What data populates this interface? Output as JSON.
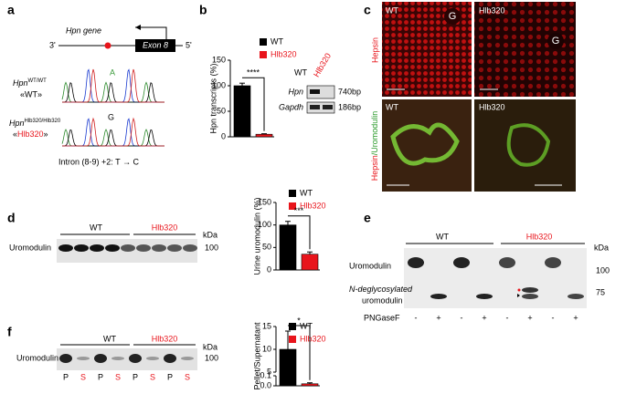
{
  "panels": {
    "a": {
      "letter": "a",
      "gene_label": "Hpn gene",
      "three_prime": "3'",
      "five_prime": "5'",
      "exon": "Exon 8",
      "wt_gene": "Hpn",
      "wt_sup": "WT/WT",
      "wt_alias": "«WT»",
      "mut_gene": "Hpn",
      "mut_sup": "Hlb320/Hlb320",
      "mut_alias_open": "«",
      "mut_alias": "Hlb320",
      "mut_alias_close": "»",
      "base_wt": "A",
      "base_mut": "G",
      "mutation": "Intron (8-9) +2: T → C"
    },
    "b": {
      "letter": "b",
      "gel_wt": "WT",
      "gel_mut": "Hlb320",
      "gene1": "Hpn",
      "gene2": "Gapdh",
      "size1": "740bp",
      "size2": "186bp"
    },
    "c": {
      "letter": "c",
      "top_wt": "WT",
      "top_mut": "Hlb320",
      "glom1": "G",
      "glom2": "G",
      "bottom_wt": "WT",
      "bottom_mut": "Hlb320",
      "stain_top": "Hepsin",
      "stain_bottom_a": "Hepsin",
      "stain_bottom_b": "/Uromodulin"
    },
    "d": {
      "letter": "d",
      "wt": "WT",
      "mut": "Hlb320",
      "kda": "kDa",
      "marker": "100",
      "protein": "Uromodulin"
    },
    "e": {
      "letter": "e",
      "wt": "WT",
      "mut": "Hlb320",
      "kda": "kDa",
      "marker1": "100",
      "marker2": "75",
      "protein": "Uromodulin",
      "degly1": "N-deglycosylated",
      "degly2": "uromodulin",
      "enzyme": "PNGaseF",
      "lanes": [
        "-",
        "+",
        "-",
        "+",
        "-",
        "+",
        "-",
        "+"
      ]
    },
    "f": {
      "letter": "f",
      "wt": "WT",
      "mut": "Hlb320",
      "kda": "kDa",
      "marker": "100",
      "protein": "Uromodulin",
      "lanes": [
        "P",
        "S",
        "P",
        "S",
        "P",
        "S",
        "P",
        "S"
      ]
    }
  },
  "chart_data": [
    {
      "type": "bar",
      "ylabel": "Hpn transcripts (%)",
      "ylim": [
        0,
        150
      ],
      "yticks": [
        0,
        50,
        100,
        150
      ],
      "significance": "****",
      "series": [
        {
          "name": "WT",
          "color": "#000000",
          "values": [
            100
          ],
          "errors": [
            5
          ]
        },
        {
          "name": "Hlb320",
          "color": "#e8141b",
          "values": [
            5
          ],
          "errors": [
            1
          ]
        }
      ]
    },
    {
      "type": "bar",
      "ylabel": "Urine uromodulin (%)",
      "ylim": [
        0,
        150
      ],
      "yticks": [
        0,
        50,
        100,
        150
      ],
      "significance": "***",
      "series": [
        {
          "name": "WT",
          "color": "#000000",
          "values": [
            100
          ],
          "errors": [
            8
          ]
        },
        {
          "name": "Hlb320",
          "color": "#e8141b",
          "values": [
            35
          ],
          "errors": [
            5
          ]
        }
      ]
    },
    {
      "type": "bar",
      "ylabel": "Pellet/Supernatant",
      "ylim": [
        0,
        15
      ],
      "ybreak": [
        0.1,
        5
      ],
      "yticks": [
        {
          "value": 0,
          "label": "0.0"
        },
        {
          "value": 0.1,
          "label": "0.1"
        },
        5,
        10,
        15
      ],
      "significance": "*",
      "series": [
        {
          "name": "WT",
          "color": "#000000",
          "values": [
            10
          ],
          "errors": [
            4
          ]
        },
        {
          "name": "Hlb320",
          "color": "#e8141b",
          "values": [
            0.02
          ],
          "errors": [
            0.01
          ]
        }
      ]
    }
  ]
}
